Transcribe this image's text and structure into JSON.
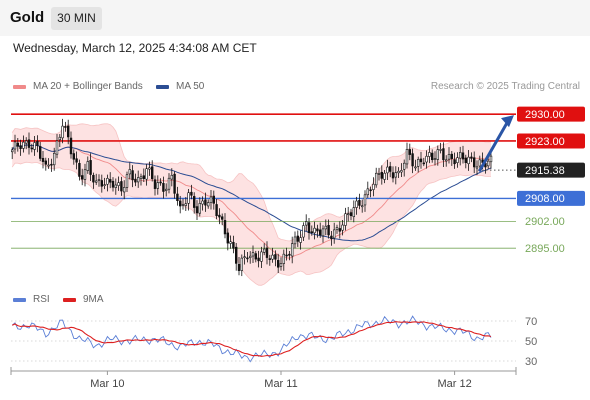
{
  "header": {
    "title": "Gold",
    "timeframe": "30 MIN",
    "timestamp": "Wednesday, March 12, 2025 4:34:08 AM CET",
    "credit": "Research © 2025 Trading Central"
  },
  "legend": {
    "main": [
      {
        "label": "MA 20 + Bollinger Bands",
        "color": "#f08a8a"
      },
      {
        "label": "MA 50",
        "color": "#2b4d93"
      }
    ],
    "rsi": [
      {
        "label": "RSI",
        "color": "#5b7fd6"
      },
      {
        "label": "9MA",
        "color": "#dd2020"
      }
    ]
  },
  "colors": {
    "up": "#ffffff",
    "down": "#111111",
    "band_fill": "#fde2e2",
    "resistance": "#e01010",
    "pivot": "#3d6fd6",
    "support": "#78a85a",
    "arrow": "#2a55a6",
    "price_tag": "#222222"
  },
  "chart_data": [
    {
      "type": "candlestick",
      "title": "Gold",
      "ylim": [
        2888,
        2935
      ],
      "x_tick_labels": [
        "Mar 10",
        "Mar 11",
        "Mar 12"
      ],
      "levels": [
        {
          "value": 2930.0,
          "label": "2930.00",
          "kind": "resistance"
        },
        {
          "value": 2923.0,
          "label": "2923.00",
          "kind": "resistance"
        },
        {
          "value": 2915.38,
          "label": "2915.38",
          "kind": "last_price"
        },
        {
          "value": 2908.0,
          "label": "2908.00",
          "kind": "pivot"
        },
        {
          "value": 2902.0,
          "label": "2902.00",
          "kind": "support"
        },
        {
          "value": 2895.0,
          "label": "2895.00",
          "kind": "support"
        }
      ],
      "close_anchors": [
        [
          0,
          2920
        ],
        [
          3,
          2922
        ],
        [
          6,
          2923
        ],
        [
          9,
          2921
        ],
        [
          12,
          2915
        ],
        [
          15,
          2920
        ],
        [
          18,
          2928
        ],
        [
          21,
          2920
        ],
        [
          24,
          2914
        ],
        [
          27,
          2917
        ],
        [
          30,
          2911
        ],
        [
          33,
          2912
        ],
        [
          36,
          2913
        ],
        [
          39,
          2910
        ],
        [
          42,
          2914
        ],
        [
          45,
          2913
        ],
        [
          48,
          2916
        ],
        [
          51,
          2911
        ],
        [
          54,
          2911
        ],
        [
          57,
          2914
        ],
        [
          60,
          2904
        ],
        [
          63,
          2909
        ],
        [
          66,
          2906
        ],
        [
          69,
          2907
        ],
        [
          72,
          2906
        ],
        [
          75,
          2902
        ],
        [
          78,
          2896
        ],
        [
          81,
          2889
        ],
        [
          84,
          2894
        ],
        [
          87,
          2893
        ],
        [
          90,
          2893
        ],
        [
          93,
          2892
        ],
        [
          96,
          2892
        ],
        [
          99,
          2894
        ],
        [
          102,
          2897
        ],
        [
          105,
          2902
        ],
        [
          108,
          2899
        ],
        [
          111,
          2899
        ],
        [
          114,
          2899
        ],
        [
          117,
          2901
        ],
        [
          120,
          2903
        ],
        [
          123,
          2906
        ],
        [
          126,
          2909
        ],
        [
          129,
          2912
        ],
        [
          132,
          2914
        ],
        [
          135,
          2916
        ],
        [
          138,
          2914
        ],
        [
          141,
          2919
        ],
        [
          144,
          2917
        ],
        [
          147,
          2919
        ],
        [
          150,
          2918
        ],
        [
          153,
          2920
        ],
        [
          156,
          2919
        ],
        [
          159,
          2918
        ],
        [
          162,
          2918
        ],
        [
          165,
          2918
        ],
        [
          168,
          2917
        ],
        [
          171,
          2917
        ]
      ],
      "series": [
        {
          "name": "MA 20 + Bollinger Bands"
        },
        {
          "name": "MA 50"
        }
      ],
      "projection": {
        "from": 2915.38,
        "to": 2930.0
      }
    },
    {
      "type": "line",
      "title": "RSI",
      "ylim": [
        25,
        75
      ],
      "y_tick_labels": [
        "70",
        "50",
        "30"
      ],
      "y_ticks": [
        70,
        50,
        30
      ],
      "rsi_anchors": [
        [
          0,
          64
        ],
        [
          6,
          66
        ],
        [
          12,
          58
        ],
        [
          18,
          68
        ],
        [
          24,
          52
        ],
        [
          30,
          46
        ],
        [
          36,
          52
        ],
        [
          42,
          50
        ],
        [
          48,
          52
        ],
        [
          54,
          50
        ],
        [
          60,
          44
        ],
        [
          66,
          50
        ],
        [
          72,
          46
        ],
        [
          78,
          38
        ],
        [
          84,
          34
        ],
        [
          90,
          36
        ],
        [
          96,
          40
        ],
        [
          102,
          56
        ],
        [
          108,
          54
        ],
        [
          114,
          52
        ],
        [
          120,
          60
        ],
        [
          126,
          66
        ],
        [
          132,
          70
        ],
        [
          138,
          68
        ],
        [
          144,
          70
        ],
        [
          150,
          64
        ],
        [
          156,
          62
        ],
        [
          162,
          58
        ],
        [
          166,
          53
        ],
        [
          171,
          55
        ]
      ],
      "series": [
        {
          "name": "RSI"
        },
        {
          "name": "9MA"
        }
      ]
    }
  ]
}
